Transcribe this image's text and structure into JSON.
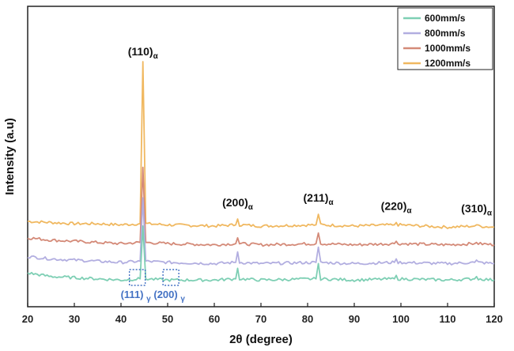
{
  "chart_data": {
    "type": "line",
    "title": "",
    "xlabel": "2θ (degree)",
    "ylabel": "Intensity (a.u)",
    "xlim": [
      20,
      120
    ],
    "xticks": [
      20,
      30,
      40,
      50,
      60,
      70,
      80,
      90,
      100,
      110,
      120
    ],
    "yticks_shown": false,
    "grid": false,
    "legend_position": "top-right",
    "series": [
      {
        "name": "600mm/s",
        "color": "#7ecfb4",
        "baseline": 0.07,
        "points": [
          [
            20,
            0.1
          ],
          [
            25,
            0.085
          ],
          [
            30,
            0.08
          ],
          [
            35,
            0.075
          ],
          [
            40,
            0.07
          ],
          [
            44.1,
            0.075
          ],
          [
            44.7,
            0.3
          ],
          [
            45.3,
            0.075
          ],
          [
            50,
            0.07
          ],
          [
            60,
            0.07
          ],
          [
            64.6,
            0.075
          ],
          [
            65.0,
            0.12
          ],
          [
            65.4,
            0.075
          ],
          [
            70,
            0.07
          ],
          [
            81.8,
            0.075
          ],
          [
            82.3,
            0.14
          ],
          [
            82.8,
            0.075
          ],
          [
            90,
            0.07
          ],
          [
            98.6,
            0.075
          ],
          [
            99.0,
            0.09
          ],
          [
            99.4,
            0.075
          ],
          [
            110,
            0.07
          ],
          [
            115.8,
            0.075
          ],
          [
            116.2,
            0.085
          ],
          [
            116.6,
            0.075
          ],
          [
            120,
            0.07
          ]
        ]
      },
      {
        "name": "800mm/s",
        "color": "#b2aee0",
        "baseline": 0.14,
        "points": [
          [
            20,
            0.17
          ],
          [
            25,
            0.16
          ],
          [
            30,
            0.155
          ],
          [
            35,
            0.15
          ],
          [
            40,
            0.145
          ],
          [
            44.1,
            0.15
          ],
          [
            44.7,
            0.42
          ],
          [
            45.3,
            0.15
          ],
          [
            50,
            0.145
          ],
          [
            60,
            0.14
          ],
          [
            64.6,
            0.145
          ],
          [
            65.0,
            0.19
          ],
          [
            65.4,
            0.145
          ],
          [
            70,
            0.14
          ],
          [
            81.8,
            0.145
          ],
          [
            82.3,
            0.21
          ],
          [
            82.8,
            0.145
          ],
          [
            90,
            0.14
          ],
          [
            98.6,
            0.145
          ],
          [
            99.0,
            0.16
          ],
          [
            99.4,
            0.145
          ],
          [
            110,
            0.14
          ],
          [
            115.8,
            0.145
          ],
          [
            116.2,
            0.155
          ],
          [
            116.6,
            0.145
          ],
          [
            120,
            0.14
          ]
        ]
      },
      {
        "name": "1000mm/s",
        "color": "#d48a78",
        "baseline": 0.22,
        "points": [
          [
            20,
            0.25
          ],
          [
            25,
            0.24
          ],
          [
            30,
            0.235
          ],
          [
            35,
            0.23
          ],
          [
            40,
            0.225
          ],
          [
            44.1,
            0.23
          ],
          [
            44.7,
            0.55
          ],
          [
            45.3,
            0.23
          ],
          [
            50,
            0.225
          ],
          [
            60,
            0.22
          ],
          [
            64.6,
            0.225
          ],
          [
            65.0,
            0.25
          ],
          [
            65.4,
            0.225
          ],
          [
            70,
            0.22
          ],
          [
            81.8,
            0.225
          ],
          [
            82.3,
            0.27
          ],
          [
            82.8,
            0.225
          ],
          [
            90,
            0.22
          ],
          [
            98.6,
            0.225
          ],
          [
            99.0,
            0.235
          ],
          [
            99.4,
            0.225
          ],
          [
            110,
            0.22
          ],
          [
            115.8,
            0.225
          ],
          [
            116.2,
            0.23
          ],
          [
            116.6,
            0.225
          ],
          [
            120,
            0.22
          ]
        ]
      },
      {
        "name": "1200mm/s",
        "color": "#f0b860",
        "baseline": 0.29,
        "points": [
          [
            20,
            0.32
          ],
          [
            25,
            0.315
          ],
          [
            30,
            0.31
          ],
          [
            35,
            0.31
          ],
          [
            40,
            0.305
          ],
          [
            44.1,
            0.31
          ],
          [
            44.7,
            1.0
          ],
          [
            45.3,
            0.31
          ],
          [
            50,
            0.305
          ],
          [
            60,
            0.3
          ],
          [
            64.6,
            0.305
          ],
          [
            65.0,
            0.33
          ],
          [
            65.4,
            0.305
          ],
          [
            70,
            0.3
          ],
          [
            81.8,
            0.305
          ],
          [
            82.3,
            0.35
          ],
          [
            82.8,
            0.305
          ],
          [
            90,
            0.3
          ],
          [
            98.6,
            0.305
          ],
          [
            99.0,
            0.315
          ],
          [
            99.4,
            0.305
          ],
          [
            110,
            0.295
          ],
          [
            115.8,
            0.3
          ],
          [
            116.2,
            0.305
          ],
          [
            116.6,
            0.3
          ],
          [
            120,
            0.295
          ]
        ]
      }
    ],
    "peak_annotations": [
      {
        "label": "(110)",
        "sub": "α",
        "x": 44.7
      },
      {
        "label": "(200)",
        "sub": "α",
        "x": 65.0
      },
      {
        "label": "(211)",
        "sub": "α",
        "x": 82.3
      },
      {
        "label": "(220)",
        "sub": "α",
        "x": 99.0
      },
      {
        "label": "(310)",
        "sub": "α",
        "x": 116.2
      }
    ],
    "gamma_annotations": [
      {
        "label": "(111)",
        "sub": "γ",
        "x": 43.5
      },
      {
        "label": "(200)",
        "sub": "γ",
        "x": 50.7
      }
    ],
    "gamma_color": "#4472c4"
  }
}
